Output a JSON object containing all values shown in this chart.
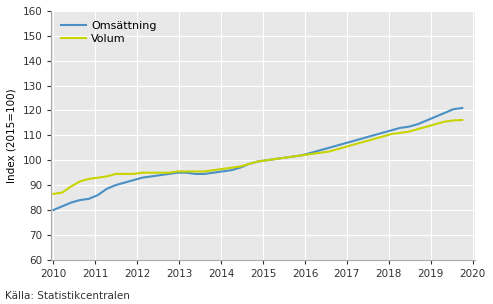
{
  "omsattning": [
    80.0,
    81.5,
    83.0,
    84.0,
    84.5,
    86.0,
    88.5,
    90.0,
    91.0,
    92.0,
    93.0,
    93.5,
    94.0,
    94.5,
    95.0,
    95.0,
    94.5,
    94.5,
    95.0,
    95.5,
    96.0,
    97.0,
    98.5,
    99.5,
    100.0,
    100.5,
    101.0,
    101.5,
    102.0,
    103.0,
    104.0,
    105.0,
    106.0,
    107.0,
    108.0,
    109.0,
    110.0,
    111.0,
    112.0,
    113.0,
    113.5,
    114.5,
    116.0,
    117.5,
    119.0,
    120.5,
    121.0
  ],
  "volum": [
    86.5,
    87.0,
    89.5,
    91.5,
    92.5,
    93.0,
    93.5,
    94.5,
    94.5,
    94.5,
    95.0,
    95.0,
    95.0,
    95.0,
    95.5,
    95.5,
    95.5,
    95.5,
    96.0,
    96.5,
    97.0,
    97.5,
    98.5,
    99.5,
    100.0,
    100.5,
    101.0,
    101.5,
    102.0,
    102.5,
    103.0,
    103.5,
    104.5,
    105.5,
    106.5,
    107.5,
    108.5,
    109.5,
    110.5,
    111.0,
    111.5,
    112.5,
    113.5,
    114.5,
    115.5,
    116.0,
    116.2
  ],
  "x_start": 2010.0,
  "x_end": 2019.75,
  "n_points": 47,
  "ylim": [
    60,
    160
  ],
  "yticks": [
    60,
    70,
    80,
    90,
    100,
    110,
    120,
    130,
    140,
    150,
    160
  ],
  "xticks": [
    2010,
    2011,
    2012,
    2013,
    2014,
    2015,
    2016,
    2017,
    2018,
    2019,
    2020
  ],
  "ylabel": "Index (2015=100)",
  "color_omsattning": "#4a90c4",
  "color_volum": "#c8d400",
  "legend_labels": [
    "Omsättning",
    "Volum"
  ],
  "source_text": "Källa: Statistikcentralen",
  "fig_bg_color": "#ffffff",
  "plot_bg_color": "#e8e8e8",
  "grid_color": "#ffffff",
  "linewidth": 1.5,
  "tick_fontsize": 7.5,
  "ylabel_fontsize": 7.5,
  "legend_fontsize": 8.0,
  "source_fontsize": 7.5
}
